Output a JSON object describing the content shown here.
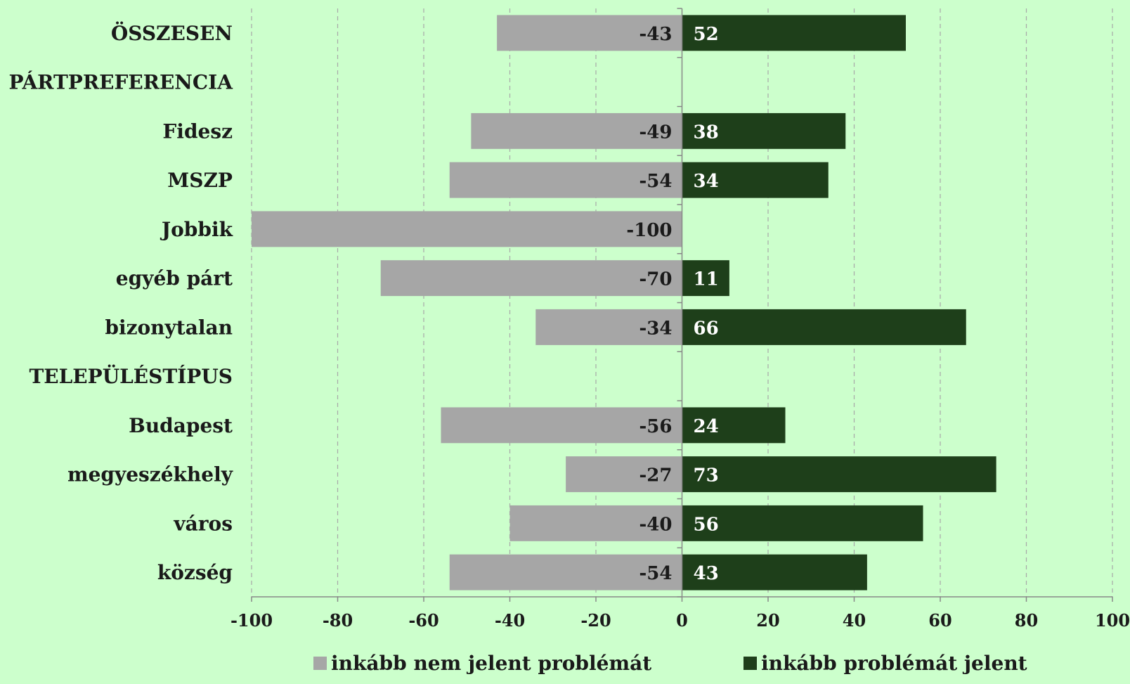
{
  "chart_data": {
    "type": "bar",
    "orientation": "horizontal",
    "stacked": "diverging",
    "categories": [
      "ÖSSZESEN",
      "PÁRTPREFERENCIA",
      "Fidesz",
      "MSZP",
      "Jobbik",
      "egyéb párt",
      "bizonytalan",
      "TELEPÜLÉSTÍPUS",
      "Budapest",
      "megyeszékhely",
      "város",
      "község"
    ],
    "series": [
      {
        "name": "inkább nem jelent problémát",
        "color": "#a6a6a6",
        "label_color": "#1a1a1a",
        "values": [
          -43,
          null,
          -49,
          -54,
          -100,
          -70,
          -34,
          null,
          -56,
          -27,
          -40,
          -54
        ]
      },
      {
        "name": "inkább problémát jelent",
        "color": "#1e3f1a",
        "label_color": "#ffffff",
        "values": [
          52,
          null,
          38,
          34,
          null,
          11,
          66,
          null,
          24,
          73,
          56,
          43
        ]
      }
    ],
    "xlim": [
      -100,
      100
    ],
    "xticks": [
      "-100",
      "-80",
      "-60",
      "-40",
      "-20",
      "0",
      "20",
      "40",
      "60",
      "80",
      "100"
    ],
    "grid": "vertical-dashed",
    "legend_position": "bottom",
    "background": "#ccffcc"
  }
}
